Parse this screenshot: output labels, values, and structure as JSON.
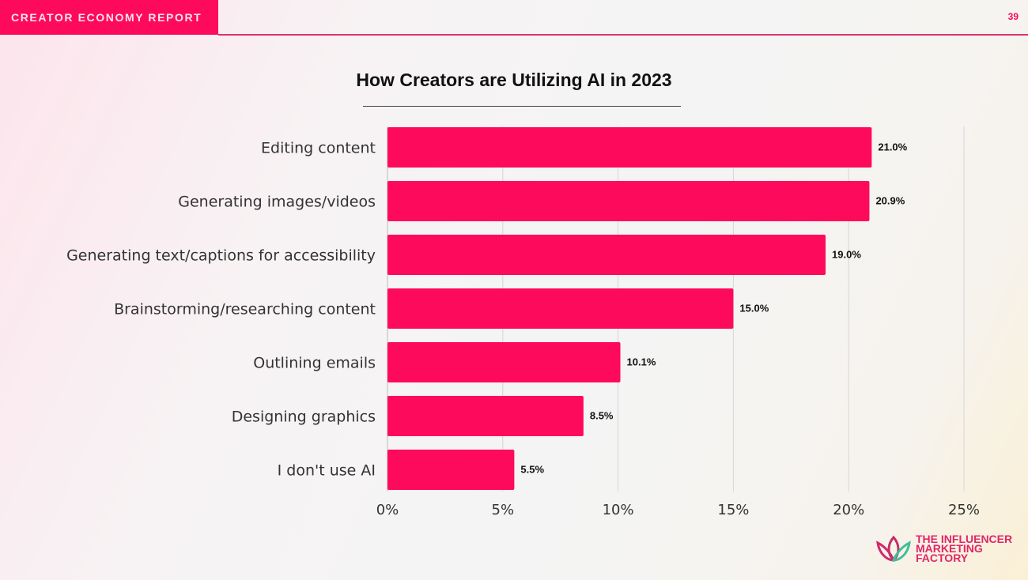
{
  "header": {
    "section": "CREATOR ECONOMY REPORT",
    "page_number": "39"
  },
  "brand": {
    "name": "THE INFLUENCER MARKETING FACTORY",
    "accent": "#fe0a5c"
  },
  "chart_data": {
    "type": "bar",
    "orientation": "horizontal",
    "title": "How Creators are Utilizing AI in 2023",
    "categories": [
      "Editing content",
      "Generating images/videos",
      "Generating text/captions for accessibility",
      "Brainstorming/researching content",
      "Outlining emails",
      "Designing graphics",
      "I don't use AI"
    ],
    "values": [
      21.0,
      20.9,
      19.0,
      15.0,
      10.1,
      8.5,
      5.5
    ],
    "value_labels": [
      "21.0%",
      "20.9%",
      "19.0%",
      "15.0%",
      "10.1%",
      "8.5%",
      "5.5%"
    ],
    "xlim": [
      0,
      25
    ],
    "xticks": [
      0,
      5,
      10,
      15,
      20,
      25
    ],
    "xtick_labels": [
      "0%",
      "5%",
      "10%",
      "15%",
      "20%",
      "25%"
    ],
    "grid": "vertical",
    "xlabel": "",
    "ylabel": "",
    "bar_color": "#fe0a5c"
  }
}
